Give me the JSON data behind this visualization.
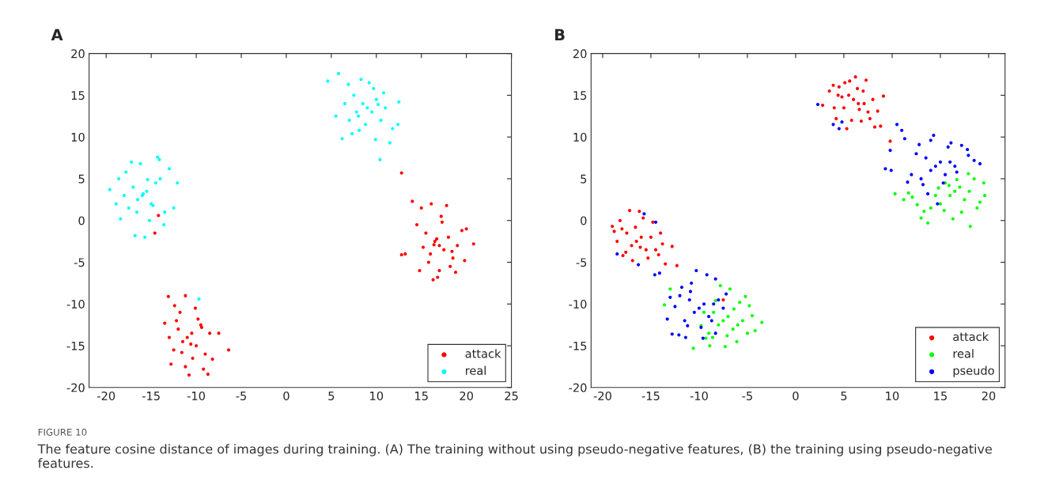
{
  "chart_data": [
    {
      "type": "scatter",
      "title": "A",
      "xlim": [
        -21.9,
        25
      ],
      "ylim": [
        -20,
        20
      ],
      "xticks": [
        -20,
        -15,
        -10,
        -5,
        0,
        5,
        10,
        15,
        20,
        25
      ],
      "yticks": [
        -20,
        -15,
        -10,
        -5,
        0,
        5,
        10,
        15,
        20
      ],
      "grid": false,
      "legend": "bottom right",
      "marker": "circle",
      "annotations": [
        "FIGURE 10",
        "The feature cosine distance of images during training. (A) The training without using pseudo-negative features, (B) the training using pseudo-negative features."
      ],
      "series": [
        {
          "name": "attack",
          "color": "#ff0000",
          "x": [
            17,
            16.5,
            17.5,
            18,
            16,
            15.5,
            18.5,
            19,
            14.5,
            15,
            17,
            16.8,
            17.2,
            18.2,
            15.8,
            19.5,
            20,
            20.8,
            13.2,
            12.8,
            14,
            16.3,
            17.8,
            18.8,
            16.7,
            15.2,
            19.8,
            17.3,
            16.4,
            18.4,
            14.8,
            16.1,
            -11,
            -10.5,
            -11.5,
            -12,
            -10,
            -9.5,
            -12.5,
            -13,
            -9,
            -8.5,
            -11.2,
            -10.8,
            -12.2,
            -13.5,
            -7.5,
            -6.4,
            -13.1,
            -11.2,
            -10.1,
            -8.7,
            -9.2,
            -11.8,
            -10.4,
            -12.8,
            -8.2,
            -11.6,
            -9.8,
            -10.6,
            -12.4,
            -9.4,
            12.8,
            -14.2,
            -14.6
          ],
          "values": [
            -3,
            -2.5,
            -3.5,
            -2,
            -4,
            -1.5,
            -4.5,
            -3,
            -0.5,
            1.5,
            -6,
            -6.8,
            0.5,
            -5.5,
            -5,
            -1.2,
            -1,
            -2.8,
            -4,
            -4.1,
            2.3,
            -7.1,
            1.8,
            -6.2,
            -2.2,
            -3.2,
            -4.8,
            -0.2,
            -2.9,
            -3.7,
            -6,
            2,
            -14,
            -13.5,
            -14.5,
            -13,
            -15,
            -12.5,
            -15.5,
            -14,
            -16,
            -13.5,
            -9,
            -18.5,
            -12,
            -12.3,
            -13.5,
            -15.5,
            -9.1,
            -17.5,
            -10.5,
            -18.4,
            -17.8,
            -11,
            -16.5,
            -17.2,
            -16.6,
            -15.8,
            -11.8,
            -14.8,
            -10.2,
            -12.8,
            5.7,
            0.6,
            -1.5
          ]
        },
        {
          "name": "real",
          "color": "#00ffff",
          "x": [
            9,
            8.5,
            9.5,
            10,
            8,
            7.5,
            10.5,
            11,
            7,
            6.5,
            9.2,
            8.8,
            4.6,
            5.8,
            12.5,
            12.4,
            10.4,
            6.2,
            7.3,
            11.5,
            9.7,
            8.3,
            10.8,
            5.5,
            11.8,
            9.9,
            8.1,
            6.9,
            10.2,
            7.8,
            -16,
            -15.5,
            -16.5,
            -17,
            -15,
            -14.5,
            -17.5,
            -18,
            -14,
            -13.5,
            -19.6,
            -18.9,
            -12.1,
            -16.8,
            -14.3,
            -15.7,
            -13,
            -17.8,
            -15.2,
            -16.2,
            -18.4,
            -14.8,
            -13.6,
            -17.2,
            -15.9,
            -16.6,
            -14.1,
            -18.6,
            -12.5,
            -15.4,
            -9.7
          ],
          "values": [
            13.5,
            14,
            13,
            14.5,
            12.5,
            15,
            12,
            13.5,
            12,
            14,
            16.5,
            11.5,
            16.7,
            17.6,
            14.2,
            11.5,
            7.3,
            9.8,
            10.4,
            9.3,
            15.8,
            16.9,
            15.3,
            12.5,
            11,
            9.7,
            10.8,
            16.3,
            13.9,
            13,
            3,
            3.5,
            2.5,
            4,
            2,
            4.5,
            1.5,
            3,
            5,
            1,
            3.7,
            2,
            4.5,
            -1.8,
            7.6,
            -2,
            6.2,
            5.8,
            0,
            6.8,
            0.2,
            1.8,
            -0.5,
            7,
            3.2,
            1,
            7.3,
            5,
            1.5,
            4.9,
            -9.4
          ]
        }
      ]
    },
    {
      "type": "scatter",
      "title": "B",
      "xlim": [
        -21.2,
        21.7
      ],
      "ylim": [
        -20,
        20
      ],
      "xticks": [
        -20,
        -15,
        -10,
        -5,
        0,
        5,
        10,
        15,
        20
      ],
      "yticks": [
        -20,
        -15,
        -10,
        -5,
        0,
        5,
        10,
        15,
        20
      ],
      "grid": false,
      "legend": "bottom right",
      "marker": "circle",
      "series": [
        {
          "name": "attack",
          "color": "#ff0000",
          "x": [
            6,
            5.5,
            6.5,
            7,
            5,
            4.5,
            7.5,
            8,
            4,
            3.5,
            6.2,
            5.8,
            2.8,
            4.2,
            8.8,
            9.1,
            8.2,
            7.3,
            5.3,
            6.8,
            3.9,
            5.1,
            7.7,
            6.4,
            4.8,
            8.5,
            5.6,
            7.1,
            6.6,
            4.4,
            -16.5,
            -16,
            -17,
            -17.5,
            -15.5,
            -15,
            -18,
            -18.5,
            -14.5,
            -14,
            -17.2,
            -16.2,
            -19,
            -18.8,
            -13.8,
            -16.9,
            -15.3,
            -17.9,
            -14.8,
            -16.6,
            -15.8,
            -18.2,
            -17.6,
            -14.2,
            -16.1,
            -13.5,
            -12.3,
            -12.8,
            9.8,
            -7.5
          ],
          "values": [
            14.5,
            15,
            14,
            15.5,
            13.5,
            16,
            13,
            14.5,
            13.5,
            15.5,
            17.2,
            12,
            13.8,
            12.2,
            11.3,
            14.9,
            11.2,
            16.8,
            11,
            11.9,
            16.2,
            16.5,
            12.2,
            15.8,
            14.8,
            13.1,
            16.7,
            14,
            13.3,
            15,
            -2.5,
            -2,
            -3,
            -1.5,
            -3.5,
            -2,
            -1,
            -2.5,
            -3.5,
            -1.5,
            1.2,
            1.1,
            -0.7,
            -1.3,
            -2.8,
            -4.8,
            -4.5,
            -4.2,
            -0.2,
            -0.8,
            0.3,
            0,
            -3.8,
            -4.1,
            -3.2,
            -5.2,
            -5.4,
            -3.1,
            9.5,
            -9.5
          ]
        },
        {
          "name": "real",
          "color": "#00ff00",
          "x": [
            16.5,
            16,
            17,
            17.5,
            15.5,
            15,
            18,
            18.5,
            14.5,
            14,
            10.3,
            11.2,
            12.1,
            13,
            19.5,
            19.6,
            18.1,
            17.2,
            16.3,
            13.7,
            15.4,
            18.8,
            12.6,
            14.8,
            17.9,
            16.7,
            13.3,
            19.1,
            15.9,
            11.7,
            -7.5,
            -7,
            -8,
            -8.5,
            -6.5,
            -6,
            -9,
            -9.5,
            -5.5,
            -5,
            -3.5,
            -4.2,
            -10.6,
            -8.9,
            -7.3,
            -5.2,
            -6.8,
            -4.8,
            -9.3,
            -7.8,
            -6.1,
            -13.6,
            -13,
            -8.3,
            -5.8,
            -4.5,
            -7.1,
            -9.8,
            -6.4,
            -8.6
          ],
          "values": [
            3.5,
            3,
            4,
            2.5,
            4.5,
            2,
            3.5,
            5,
            3,
            1.5,
            3.2,
            2.5,
            2.8,
            0.3,
            4.5,
            3,
            -0.7,
            1,
            0.2,
            -0.3,
            1.2,
            1.5,
            1.9,
            3.9,
            5.6,
            4.9,
            1.1,
            2.2,
            4.2,
            3.3,
            -12,
            -11.5,
            -12.5,
            -11,
            -13,
            -12.5,
            -13.5,
            -11,
            -12,
            -13.5,
            -12.2,
            -13.2,
            -15.3,
            -15,
            -15.1,
            -9.1,
            -8.2,
            -10.2,
            -14.1,
            -7.8,
            -14.5,
            -10.1,
            -8.2,
            -9.6,
            -9.8,
            -11.4,
            -13.8,
            -12.6,
            -10.6,
            -14
          ]
        },
        {
          "name": "pseudo",
          "color": "#0000ff",
          "x": [
            14.5,
            14,
            15,
            15.5,
            13.5,
            13,
            16,
            16.5,
            12.5,
            12,
            14.3,
            14,
            11,
            11.3,
            10.5,
            9.8,
            9.3,
            9.9,
            17.8,
            18.5,
            19.1,
            17.2,
            16.7,
            15.8,
            13.2,
            15.3,
            12.8,
            11.6,
            14.7,
            16.1,
            17.9,
            13.7,
            -10,
            -9.5,
            -10.5,
            -11,
            -9,
            -8.5,
            -11.5,
            -12,
            -8,
            -7.5,
            -10.3,
            -9.2,
            -14.6,
            -14.1,
            -13.3,
            -12.8,
            -12.1,
            -11.4,
            -8.3,
            -9.8,
            -10.8,
            -11.8,
            -7.2,
            -8.3,
            -9.6,
            -12.5,
            -10.9,
            -13,
            -11.2,
            -8.7,
            -18.5,
            -15.7,
            -14.5,
            -16.3,
            2.3,
            3.9,
            4.5,
            4.8
          ],
          "values": [
            6.5,
            6,
            7,
            5.5,
            7.5,
            5,
            7,
            6.5,
            8,
            5.5,
            10.2,
            9.6,
            10.8,
            9.8,
            11.5,
            8.4,
            6.2,
            6,
            8.5,
            7.2,
            6.8,
            9,
            5.8,
            8.8,
            4.3,
            4.5,
            9.1,
            4.6,
            2,
            9.3,
            7.8,
            3.2,
            -10.5,
            -10,
            -11,
            -9.5,
            -11.5,
            -10,
            -12,
            -9,
            -9.5,
            -10.5,
            -6,
            -6.5,
            -6.5,
            -6.3,
            -11.8,
            -13.6,
            -13.7,
            -14,
            -13.5,
            -12.8,
            -7.5,
            -8,
            -8.8,
            -7,
            -14.1,
            -10.3,
            -8.5,
            -9.2,
            -12.6,
            -12,
            -4,
            0.8,
            -0.2,
            -5.3,
            13.9,
            11.5,
            11,
            11.8
          ]
        }
      ]
    }
  ]
}
